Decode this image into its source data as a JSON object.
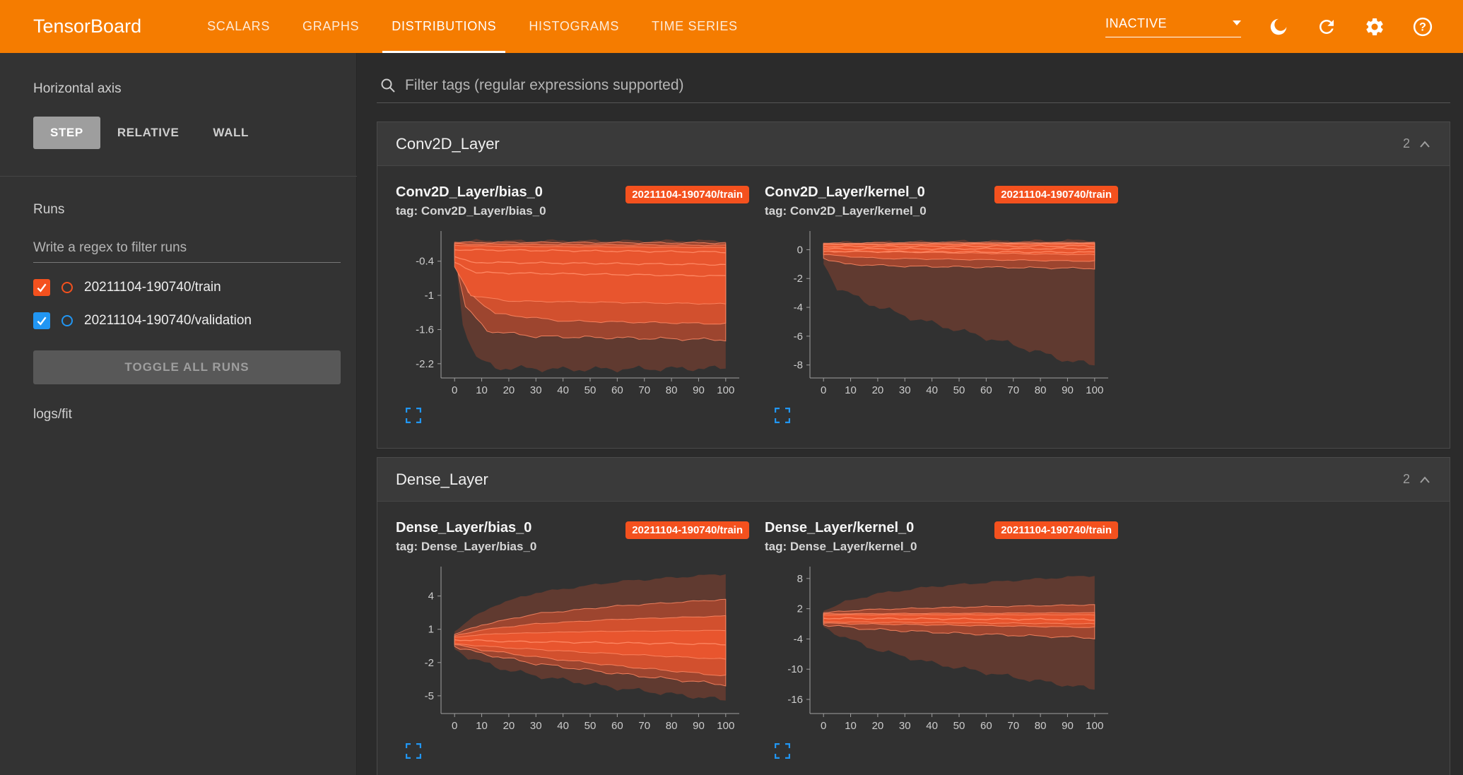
{
  "colors": {
    "accent": "#f57c00",
    "run_train": "#f4511e",
    "run_validation": "#2196f3",
    "expand": "#2196f3"
  },
  "header": {
    "title": "TensorBoard",
    "tabs": [
      "SCALARS",
      "GRAPHS",
      "DISTRIBUTIONS",
      "HISTOGRAMS",
      "TIME SERIES"
    ],
    "active_tab": "DISTRIBUTIONS",
    "status": "INACTIVE",
    "icons": [
      "dark-mode",
      "refresh",
      "settings",
      "help"
    ]
  },
  "sidebar": {
    "horizontal_axis_label": "Horizontal axis",
    "axis_options": [
      "STEP",
      "RELATIVE",
      "WALL"
    ],
    "axis_selected": "STEP",
    "runs_label": "Runs",
    "runs_filter_placeholder": "Write a regex to filter runs",
    "runs": [
      {
        "label": "20211104-190740/train",
        "checked": true,
        "color": "#f4511e"
      },
      {
        "label": "20211104-190740/validation",
        "checked": true,
        "color": "#2196f3"
      }
    ],
    "toggle_all_label": "TOGGLE ALL RUNS",
    "footer": "logs/fit"
  },
  "main": {
    "filter_placeholder": "Filter tags (regular expressions supported)",
    "cards": [
      {
        "title": "Conv2D_Layer",
        "count": "2",
        "charts": [
          {
            "name": "Conv2D_Layer/bias_0",
            "tag": "tag: Conv2D_Layer/bias_0",
            "badge": "20211104-190740/train"
          },
          {
            "name": "Conv2D_Layer/kernel_0",
            "tag": "tag: Conv2D_Layer/kernel_0",
            "badge": "20211104-190740/train"
          }
        ]
      },
      {
        "title": "Dense_Layer",
        "count": "2",
        "charts": [
          {
            "name": "Dense_Layer/bias_0",
            "tag": "tag: Dense_Layer/bias_0",
            "badge": "20211104-190740/train"
          },
          {
            "name": "Dense_Layer/kernel_0",
            "tag": "tag: Dense_Layer/kernel_0",
            "badge": "20211104-190740/train"
          }
        ]
      }
    ]
  },
  "chart_data": [
    {
      "type": "area",
      "title": "Conv2D_Layer/bias_0",
      "run": "20211104-190740/train",
      "xlabel": "step",
      "xlim": [
        -5,
        105
      ],
      "ylim": [
        -2.45,
        0.08
      ],
      "xticks": [
        0,
        10,
        20,
        30,
        40,
        50,
        60,
        70,
        80,
        90,
        100
      ],
      "yticks": [
        -0.4,
        -1,
        -1.6,
        -2.2
      ],
      "color": "#e8552e",
      "edge": "#ff8a65",
      "bands": [
        {
          "o": 0.26,
          "w": 5,
          "s": false,
          "points": [
            [
              0,
              -0.05,
              -0.2
            ],
            [
              3,
              -0.05,
              -1.5
            ],
            [
              8,
              -0.04,
              -2.1
            ],
            [
              15,
              -0.04,
              -2.27
            ],
            [
              40,
              -0.04,
              -2.3
            ],
            [
              100,
              -0.04,
              -2.28
            ]
          ]
        },
        {
          "o": 0.45,
          "w": 2.5,
          "s": true,
          "points": [
            [
              0,
              -0.07,
              -0.3
            ],
            [
              4,
              -0.07,
              -1.2
            ],
            [
              12,
              -0.07,
              -1.62
            ],
            [
              30,
              -0.07,
              -1.72
            ],
            [
              100,
              -0.08,
              -1.78
            ]
          ]
        },
        {
          "o": 0.7,
          "w": 1.5,
          "s": true,
          "points": [
            [
              0,
              -0.09,
              -0.38
            ],
            [
              5,
              -0.1,
              -0.95
            ],
            [
              15,
              -0.1,
              -1.32
            ],
            [
              40,
              -0.11,
              -1.45
            ],
            [
              100,
              -0.12,
              -1.5
            ]
          ]
        },
        {
          "o": 1.0,
          "w": 1.0,
          "s": true,
          "points": [
            [
              0,
              -0.12,
              -0.5
            ],
            [
              6,
              -0.13,
              -1.0
            ],
            [
              20,
              -0.14,
              -1.1
            ],
            [
              100,
              -0.16,
              -1.15
            ]
          ]
        }
      ],
      "lines": [
        {
          "points": [
            [
              0,
              -0.2
            ],
            [
              100,
              -0.24
            ]
          ]
        },
        {
          "points": [
            [
              0,
              -0.32
            ],
            [
              6,
              -0.42
            ],
            [
              100,
              -0.46
            ]
          ]
        },
        {
          "points": [
            [
              0,
              -0.42
            ],
            [
              8,
              -0.6
            ],
            [
              100,
              -0.66
            ]
          ]
        }
      ]
    },
    {
      "type": "area",
      "title": "Conv2D_Layer/kernel_0",
      "run": "20211104-190740/train",
      "xlabel": "step",
      "xlim": [
        -5,
        105
      ],
      "ylim": [
        -8.9,
        1.1
      ],
      "xticks": [
        0,
        10,
        20,
        30,
        40,
        50,
        60,
        70,
        80,
        90,
        100
      ],
      "yticks": [
        0,
        -2,
        -4,
        -6,
        -8
      ],
      "color": "#e8552e",
      "edge": "#ff8a65",
      "bands": [
        {
          "o": 0.26,
          "w": 5,
          "s": false,
          "points": [
            [
              0,
              0.5,
              -1.0
            ],
            [
              5,
              0.5,
              -2.6
            ],
            [
              15,
              0.55,
              -3.6
            ],
            [
              30,
              0.55,
              -4.6
            ],
            [
              50,
              0.6,
              -5.6
            ],
            [
              70,
              0.6,
              -6.6
            ],
            [
              90,
              0.65,
              -7.7
            ],
            [
              100,
              0.65,
              -8.0
            ]
          ]
        },
        {
          "o": 0.45,
          "w": 1.5,
          "s": true,
          "points": [
            [
              0,
              0.45,
              -0.6
            ],
            [
              8,
              0.45,
              -1.0
            ],
            [
              30,
              0.5,
              -1.15
            ],
            [
              100,
              0.5,
              -1.3
            ]
          ]
        },
        {
          "o": 0.7,
          "w": 1.0,
          "s": true,
          "points": [
            [
              0,
              0.4,
              -0.35
            ],
            [
              20,
              0.4,
              -0.6
            ],
            [
              100,
              0.45,
              -0.8
            ]
          ]
        },
        {
          "o": 1.0,
          "w": 0.8,
          "s": true,
          "points": [
            [
              0,
              0.35,
              -0.1
            ],
            [
              100,
              0.4,
              -0.35
            ]
          ]
        }
      ],
      "lines": [
        {
          "points": [
            [
              0,
              0.22
            ],
            [
              100,
              0.26
            ]
          ]
        },
        {
          "points": [
            [
              0,
              0.05
            ],
            [
              100,
              0.08
            ]
          ]
        },
        {
          "points": [
            [
              0,
              -0.12
            ],
            [
              100,
              -0.18
            ]
          ]
        }
      ]
    },
    {
      "type": "area",
      "title": "Dense_Layer/bias_0",
      "run": "20211104-190740/train",
      "xlabel": "step",
      "xlim": [
        -5,
        105
      ],
      "ylim": [
        -6.6,
        6.4
      ],
      "xticks": [
        0,
        10,
        20,
        30,
        40,
        50,
        60,
        70,
        80,
        90,
        100
      ],
      "yticks": [
        4,
        1,
        -2,
        -5
      ],
      "color": "#e8552e",
      "edge": "#ff8a65",
      "bands": [
        {
          "o": 0.26,
          "w": 4,
          "s": false,
          "points": [
            [
              0,
              0.8,
              -0.8
            ],
            [
              5,
              1.8,
              -1.5
            ],
            [
              15,
              3.2,
              -2.4
            ],
            [
              30,
              4.3,
              -3.2
            ],
            [
              60,
              5.3,
              -4.3
            ],
            [
              100,
              6.0,
              -5.4
            ]
          ]
        },
        {
          "o": 0.45,
          "w": 2.5,
          "s": true,
          "points": [
            [
              0,
              0.55,
              -0.55
            ],
            [
              10,
              1.4,
              -1.2
            ],
            [
              30,
              2.4,
              -2.1
            ],
            [
              60,
              3.1,
              -3.0
            ],
            [
              100,
              3.7,
              -4.0
            ]
          ]
        },
        {
          "o": 0.7,
          "w": 1.5,
          "s": true,
          "points": [
            [
              0,
              0.4,
              -0.4
            ],
            [
              10,
              0.95,
              -0.85
            ],
            [
              30,
              1.5,
              -1.5
            ],
            [
              60,
              1.9,
              -2.3
            ],
            [
              100,
              2.2,
              -3.2
            ]
          ]
        },
        {
          "o": 1.0,
          "w": 1.0,
          "s": true,
          "points": [
            [
              0,
              0.3,
              -0.3
            ],
            [
              15,
              0.6,
              -0.6
            ],
            [
              50,
              0.8,
              -1.1
            ],
            [
              100,
              0.9,
              -1.7
            ]
          ]
        }
      ],
      "lines": [
        {
          "points": [
            [
              0,
              0.05
            ],
            [
              20,
              -0.1
            ],
            [
              100,
              -0.35
            ]
          ]
        }
      ]
    },
    {
      "type": "area",
      "title": "Dense_Layer/kernel_0",
      "run": "20211104-190740/train",
      "xlabel": "step",
      "xlim": [
        -5,
        105
      ],
      "ylim": [
        -18.8,
        9.8
      ],
      "xticks": [
        0,
        10,
        20,
        30,
        40,
        50,
        60,
        70,
        80,
        90,
        100
      ],
      "yticks": [
        8,
        2,
        -4,
        -10,
        -16
      ],
      "color": "#e8552e",
      "edge": "#ff8a65",
      "bands": [
        {
          "o": 0.26,
          "w": 4,
          "s": false,
          "points": [
            [
              0,
              1.6,
              -1.6
            ],
            [
              8,
              3.4,
              -3.8
            ],
            [
              20,
              5.0,
              -6.2
            ],
            [
              40,
              6.4,
              -8.8
            ],
            [
              70,
              7.6,
              -11.6
            ],
            [
              100,
              8.6,
              -14.0
            ]
          ]
        },
        {
          "o": 0.45,
          "w": 2,
          "s": true,
          "points": [
            [
              0,
              1.2,
              -1.2
            ],
            [
              15,
              1.8,
              -2.0
            ],
            [
              50,
              2.3,
              -2.9
            ],
            [
              100,
              2.8,
              -3.8
            ]
          ]
        },
        {
          "o": 0.75,
          "w": 1,
          "s": true,
          "points": [
            [
              0,
              1.0,
              -0.9
            ],
            [
              50,
              1.1,
              -1.3
            ],
            [
              100,
              1.2,
              -1.7
            ]
          ]
        },
        {
          "o": 1.0,
          "w": 0.8,
          "s": true,
          "points": [
            [
              0,
              0.8,
              -0.6
            ],
            [
              100,
              0.8,
              -1.0
            ]
          ]
        }
      ],
      "lines": [
        {
          "points": [
            [
              0,
              0.1
            ],
            [
              100,
              -0.15
            ]
          ]
        }
      ]
    }
  ]
}
